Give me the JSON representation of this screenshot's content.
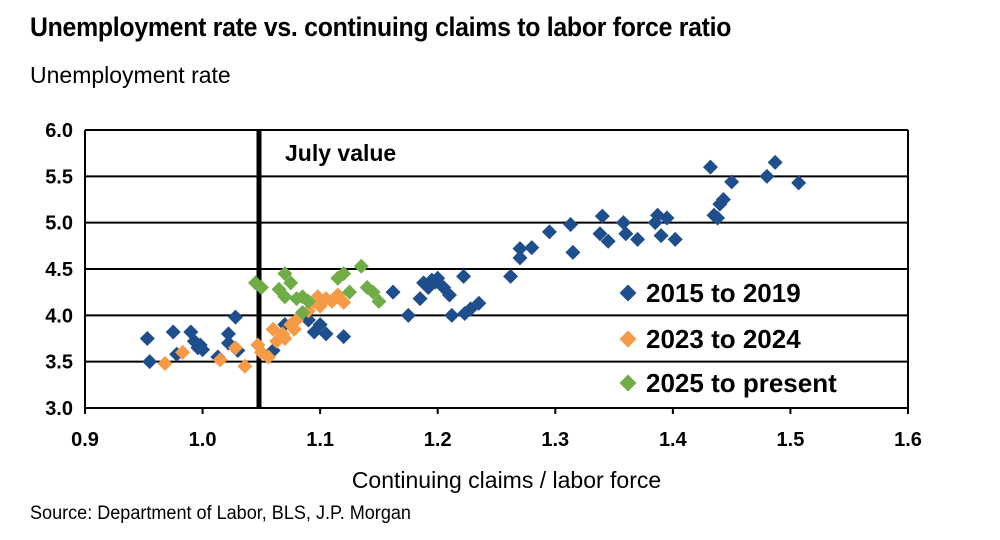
{
  "header": {
    "title": "Unemployment rate vs. continuing claims to labor force ratio",
    "y_axis_caption": "Unemployment rate"
  },
  "footer": {
    "source": "Source: Department of Labor, BLS, J.P. Morgan"
  },
  "chart_data": {
    "type": "scatter",
    "title": "Unemployment rate vs. continuing claims to labor force ratio",
    "xlabel": "Continuing claims / labor force",
    "ylabel": "Unemployment rate",
    "xlim": [
      0.9,
      1.6
    ],
    "ylim": [
      3.0,
      6.0
    ],
    "x_ticks": [
      "0.9",
      "1.0",
      "1.1",
      "1.2",
      "1.3",
      "1.4",
      "1.5",
      "1.6"
    ],
    "y_ticks": [
      "3.0",
      "3.5",
      "4.0",
      "4.5",
      "5.0",
      "5.5",
      "6.0"
    ],
    "grid": "horizontal",
    "legend_position": "right",
    "reference_line": {
      "x": 1.048,
      "label": "July value"
    },
    "series": [
      {
        "name": "2015 to 2019",
        "color": "#1F4E8C",
        "points": [
          [
            0.953,
            3.75
          ],
          [
            0.955,
            3.5
          ],
          [
            0.975,
            3.82
          ],
          [
            0.978,
            3.58
          ],
          [
            0.99,
            3.82
          ],
          [
            0.993,
            3.72
          ],
          [
            0.996,
            3.65
          ],
          [
            0.998,
            3.68
          ],
          [
            1.0,
            3.63
          ],
          [
            1.013,
            3.55
          ],
          [
            1.022,
            3.8
          ],
          [
            1.022,
            3.7
          ],
          [
            1.028,
            3.98
          ],
          [
            1.03,
            3.62
          ],
          [
            1.06,
            3.62
          ],
          [
            1.07,
            3.9
          ],
          [
            1.09,
            3.95
          ],
          [
            1.095,
            3.82
          ],
          [
            1.1,
            3.9
          ],
          [
            1.105,
            3.8
          ],
          [
            1.12,
            3.77
          ],
          [
            1.162,
            4.25
          ],
          [
            1.175,
            4.0
          ],
          [
            1.185,
            4.18
          ],
          [
            1.188,
            4.35
          ],
          [
            1.192,
            4.3
          ],
          [
            1.195,
            4.38
          ],
          [
            1.198,
            4.36
          ],
          [
            1.2,
            4.4
          ],
          [
            1.205,
            4.3
          ],
          [
            1.21,
            4.22
          ],
          [
            1.212,
            4.0
          ],
          [
            1.222,
            4.42
          ],
          [
            1.223,
            4.02
          ],
          [
            1.228,
            4.07
          ],
          [
            1.235,
            4.13
          ],
          [
            1.262,
            4.42
          ],
          [
            1.27,
            4.72
          ],
          [
            1.27,
            4.62
          ],
          [
            1.28,
            4.73
          ],
          [
            1.295,
            4.9
          ],
          [
            1.313,
            4.98
          ],
          [
            1.315,
            4.68
          ],
          [
            1.338,
            4.88
          ],
          [
            1.34,
            5.07
          ],
          [
            1.345,
            4.8
          ],
          [
            1.358,
            5.0
          ],
          [
            1.36,
            4.88
          ],
          [
            1.37,
            4.82
          ],
          [
            1.385,
            5.0
          ],
          [
            1.387,
            5.08
          ],
          [
            1.39,
            4.86
          ],
          [
            1.395,
            5.05
          ],
          [
            1.402,
            4.82
          ],
          [
            1.432,
            5.6
          ],
          [
            1.435,
            5.08
          ],
          [
            1.438,
            5.05
          ],
          [
            1.44,
            5.2
          ],
          [
            1.443,
            5.25
          ],
          [
            1.45,
            5.44
          ],
          [
            1.48,
            5.5
          ],
          [
            1.487,
            5.65
          ],
          [
            1.507,
            5.43
          ]
        ]
      },
      {
        "name": "2023 to 2024",
        "color": "#F59A45",
        "points": [
          [
            0.968,
            3.48
          ],
          [
            0.983,
            3.6
          ],
          [
            1.015,
            3.52
          ],
          [
            1.028,
            3.65
          ],
          [
            1.036,
            3.45
          ],
          [
            1.047,
            3.68
          ],
          [
            1.05,
            3.6
          ],
          [
            1.056,
            3.55
          ],
          [
            1.06,
            3.85
          ],
          [
            1.063,
            3.72
          ],
          [
            1.068,
            3.8
          ],
          [
            1.07,
            3.75
          ],
          [
            1.075,
            3.9
          ],
          [
            1.078,
            3.85
          ],
          [
            1.08,
            3.95
          ],
          [
            1.09,
            4.05
          ],
          [
            1.095,
            4.15
          ],
          [
            1.098,
            4.2
          ],
          [
            1.1,
            4.1
          ],
          [
            1.105,
            4.18
          ],
          [
            1.11,
            4.15
          ],
          [
            1.115,
            4.22
          ],
          [
            1.12,
            4.14
          ]
        ]
      },
      {
        "name": "2025 to present",
        "color": "#70AD47",
        "points": [
          [
            1.045,
            4.35
          ],
          [
            1.05,
            4.3
          ],
          [
            1.065,
            4.28
          ],
          [
            1.07,
            4.45
          ],
          [
            1.07,
            4.2
          ],
          [
            1.075,
            4.35
          ],
          [
            1.08,
            4.18
          ],
          [
            1.085,
            4.2
          ],
          [
            1.09,
            4.15
          ],
          [
            1.085,
            4.03
          ],
          [
            1.115,
            4.4
          ],
          [
            1.12,
            4.45
          ],
          [
            1.125,
            4.25
          ],
          [
            1.135,
            4.53
          ],
          [
            1.14,
            4.3
          ],
          [
            1.145,
            4.25
          ],
          [
            1.15,
            4.15
          ]
        ]
      }
    ]
  }
}
